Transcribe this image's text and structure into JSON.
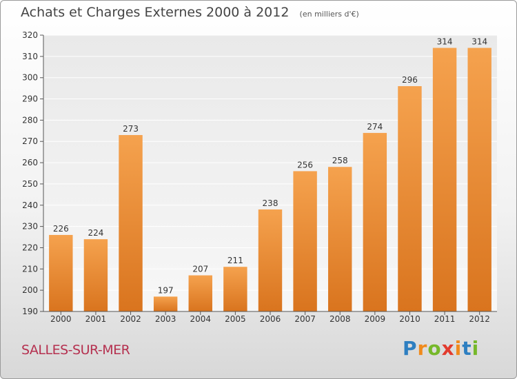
{
  "header": {
    "title": "Achats et Charges Externes 2000 à 2012",
    "unit": "(en milliers d'€)"
  },
  "footer": {
    "commune": "SALLES-SUR-MER",
    "brand_letters": [
      "P",
      "r",
      "o",
      "x",
      "i",
      "t",
      "i"
    ],
    "brand_colors": [
      "#2e7fc1",
      "#f08a1c",
      "#76b82a",
      "#e23b2e",
      "#f08a1c",
      "#2e7fc1",
      "#76b82a"
    ]
  },
  "colors": {
    "bar_top": "#f5a24e",
    "bar_bottom": "#d9741e",
    "axis": "#555555",
    "grid": "#ffffff",
    "text": "#333333"
  },
  "chart_data": {
    "type": "bar",
    "title": "Achats et Charges Externes 2000 à 2012",
    "subtitle": "(en milliers d'€)",
    "categories": [
      "2000",
      "2001",
      "2002",
      "2003",
      "2004",
      "2005",
      "2006",
      "2007",
      "2008",
      "2009",
      "2010",
      "2011",
      "2012"
    ],
    "values": [
      226,
      224,
      273,
      197,
      207,
      211,
      238,
      256,
      258,
      274,
      296,
      314,
      314
    ],
    "ylim": [
      190,
      320
    ],
    "yticks": [
      190,
      200,
      210,
      220,
      230,
      240,
      250,
      260,
      270,
      280,
      290,
      300,
      310,
      320
    ],
    "grid": true,
    "legend": "none"
  }
}
